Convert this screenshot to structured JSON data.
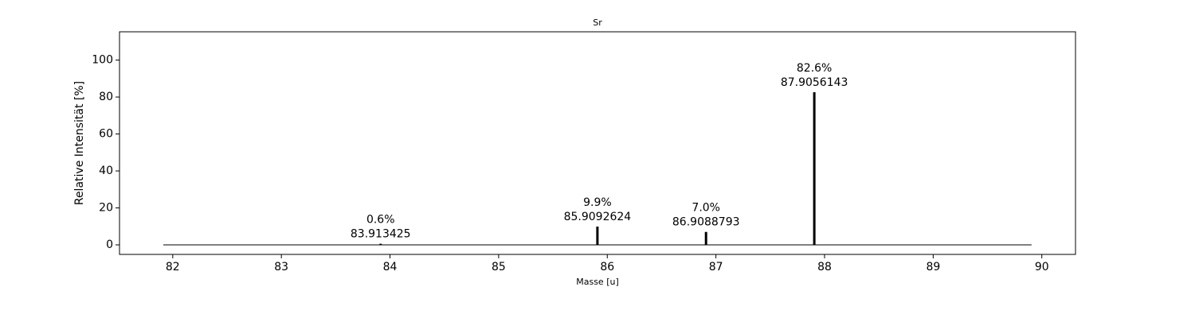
{
  "chart_data": {
    "type": "stem",
    "title": "Sr",
    "xlabel": "Masse [u]",
    "ylabel": "Relative Intensität [%]",
    "x": [
      83.913425,
      85.9092624,
      86.9088793,
      87.9056143
    ],
    "values": [
      0.6,
      9.9,
      7.0,
      82.6
    ],
    "value_labels": [
      "0.6%",
      "9.9%",
      "7.0%",
      "82.6%"
    ],
    "color": "#000000",
    "xlim": [
      81.51,
      90.31
    ],
    "xticks": [
      82,
      83,
      84,
      85,
      86,
      87,
      88,
      89,
      90
    ],
    "ylim": [
      -5.16,
      115.3
    ],
    "yticks": [
      0,
      20,
      40,
      60,
      80,
      100
    ]
  }
}
